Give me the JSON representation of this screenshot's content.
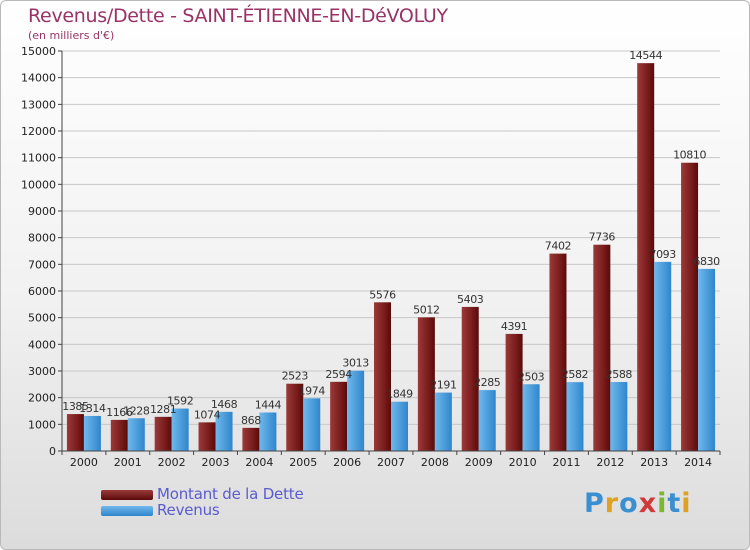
{
  "title": "Revenus/Dette - SAINT-ÉTIENNE-EN-DéVOLUY",
  "subtitle": "(en milliers d'€)",
  "logo_text": "Proxiti",
  "colors": {
    "title": "#993366",
    "debt_dark": "#5a0a0a",
    "debt_light": "#9a3a3a",
    "revenue_dark": "#2f86cc",
    "revenue_light": "#6fb8ec",
    "legend_text": "#5b5bd0",
    "axis_text": "#222222"
  },
  "chart_data": {
    "type": "bar",
    "categories": [
      "2000",
      "2001",
      "2002",
      "2003",
      "2004",
      "2005",
      "2006",
      "2007",
      "2008",
      "2009",
      "2010",
      "2011",
      "2012",
      "2013",
      "2014"
    ],
    "series": [
      {
        "name": "Montant de la Dette",
        "values": [
          1385,
          1166,
          1281,
          1074,
          868,
          2523,
          2594,
          5576,
          5012,
          5403,
          4391,
          7402,
          7736,
          14544,
          10810
        ]
      },
      {
        "name": "Revenus",
        "values": [
          1314,
          1228,
          1592,
          1468,
          1444,
          1974,
          3013,
          1849,
          2191,
          2285,
          2503,
          2582,
          2588,
          7093,
          6830
        ]
      }
    ],
    "ylim": [
      0,
      15000
    ],
    "yticks": [
      0,
      1000,
      2000,
      3000,
      4000,
      5000,
      6000,
      7000,
      8000,
      9000,
      10000,
      11000,
      12000,
      13000,
      14000,
      15000
    ],
    "grid": true,
    "legend_position": "bottom-left"
  }
}
